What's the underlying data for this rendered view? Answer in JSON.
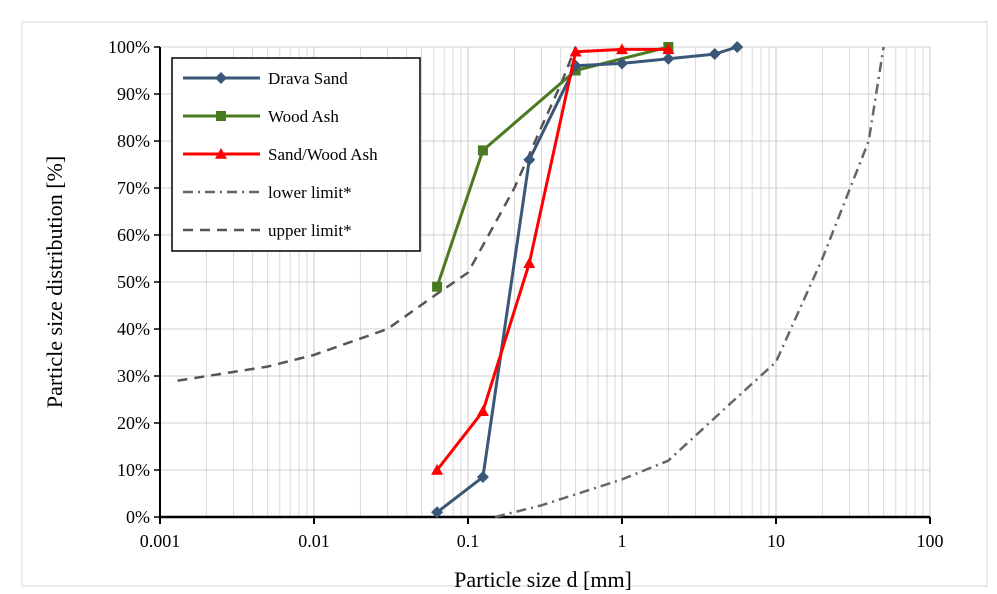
{
  "chart_data": {
    "type": "line",
    "title": "",
    "xlabel": "Particle size  d  [mm]",
    "ylabel": "Particle size  distribution  [%]",
    "x_scale": "log",
    "xlim": [
      0.001,
      100
    ],
    "ylim": [
      0,
      100
    ],
    "x_ticks": [
      {
        "value": 0.001,
        "label": "0.001"
      },
      {
        "value": 0.01,
        "label": "0.01"
      },
      {
        "value": 0.1,
        "label": "0.1"
      },
      {
        "value": 1,
        "label": "1"
      },
      {
        "value": 10,
        "label": "10"
      },
      {
        "value": 100,
        "label": "100"
      }
    ],
    "y_ticks": [
      {
        "value": 0,
        "label": "0%"
      },
      {
        "value": 10,
        "label": "10%"
      },
      {
        "value": 20,
        "label": "20%"
      },
      {
        "value": 30,
        "label": "30%"
      },
      {
        "value": 40,
        "label": "40%"
      },
      {
        "value": 50,
        "label": "50%"
      },
      {
        "value": 60,
        "label": "60%"
      },
      {
        "value": 70,
        "label": "70%"
      },
      {
        "value": 80,
        "label": "80%"
      },
      {
        "value": 90,
        "label": "90%"
      },
      {
        "value": 100,
        "label": "100%"
      }
    ],
    "grid": true,
    "legend_position": "top-left",
    "series": [
      {
        "name": "Drava Sand",
        "color": "#3b5778",
        "marker": "diamond",
        "line": "solid",
        "points": [
          [
            0.063,
            1
          ],
          [
            0.125,
            8.5
          ],
          [
            0.25,
            76
          ],
          [
            0.5,
            96
          ],
          [
            1,
            96.5
          ],
          [
            2,
            97.5
          ],
          [
            4,
            98.5
          ],
          [
            5.6,
            100
          ]
        ]
      },
      {
        "name": "Wood Ash",
        "color": "#4a7a1f",
        "marker": "square",
        "line": "solid",
        "points": [
          [
            0.063,
            49
          ],
          [
            0.125,
            78
          ],
          [
            0.5,
            95
          ],
          [
            2,
            100
          ]
        ]
      },
      {
        "name": "Sand/Wood Ash",
        "color": "#ff0000",
        "marker": "triangle",
        "line": "solid",
        "points": [
          [
            0.063,
            10
          ],
          [
            0.125,
            22.5
          ],
          [
            0.25,
            54
          ],
          [
            0.5,
            99
          ],
          [
            1,
            99.5
          ],
          [
            2,
            99.5
          ]
        ]
      },
      {
        "name": "lower limit*",
        "color": "#666666",
        "marker": "none",
        "line": "dashdot",
        "points": [
          [
            0.15,
            0
          ],
          [
            0.3,
            2.5
          ],
          [
            1,
            8
          ],
          [
            2,
            12
          ],
          [
            5,
            24
          ],
          [
            10,
            33
          ],
          [
            20,
            55
          ],
          [
            40,
            80
          ],
          [
            50,
            100
          ]
        ]
      },
      {
        "name": "upper limit*",
        "color": "#555555",
        "marker": "none",
        "line": "dashed",
        "points": [
          [
            0.0013,
            29
          ],
          [
            0.005,
            32
          ],
          [
            0.01,
            34.5
          ],
          [
            0.03,
            40
          ],
          [
            0.06,
            47
          ],
          [
            0.1,
            52
          ],
          [
            0.2,
            70
          ],
          [
            0.3,
            83
          ],
          [
            0.4,
            92
          ],
          [
            0.5,
            100
          ]
        ]
      }
    ]
  }
}
